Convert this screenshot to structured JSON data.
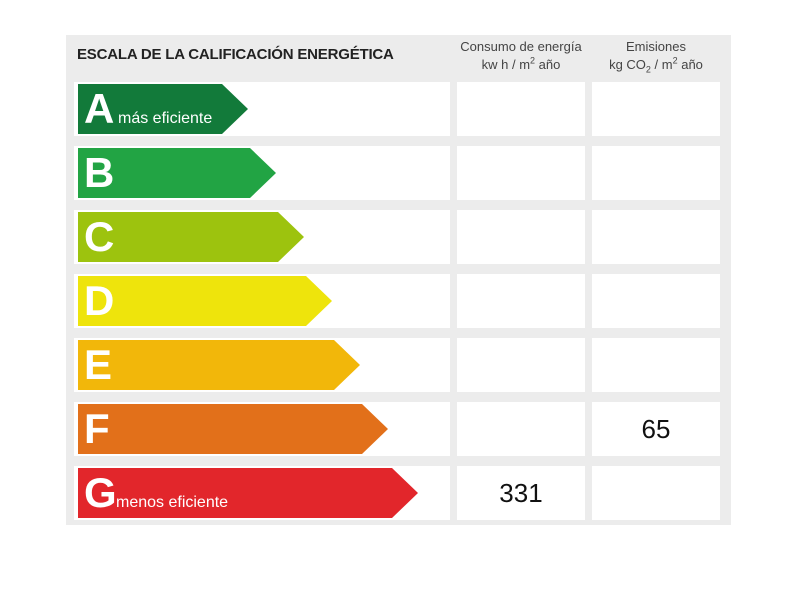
{
  "title": "ESCALA DE LA CALIFICACIÓN ENERGÉTICA",
  "columns": {
    "consumo": {
      "line1": "Consumo de energía",
      "line2_pre": "kw h / m",
      "line2_sup": "2",
      "line2_post": " año"
    },
    "emisiones": {
      "line1": "Emisiones",
      "line2_pre": "kg CO",
      "line2_sub": "2",
      "line2_mid": " / m",
      "line2_sup": "2",
      "line2_post": " año"
    }
  },
  "ratings": [
    {
      "letter": "A",
      "sublabel": "más eficiente",
      "color": "#127a3a",
      "consumo": "",
      "emisiones": ""
    },
    {
      "letter": "B",
      "sublabel": "",
      "color": "#22a444",
      "consumo": "",
      "emisiones": ""
    },
    {
      "letter": "C",
      "sublabel": "",
      "color": "#9dc30e",
      "consumo": "",
      "emisiones": ""
    },
    {
      "letter": "D",
      "sublabel": "",
      "color": "#eee40c",
      "consumo": "",
      "emisiones": ""
    },
    {
      "letter": "E",
      "sublabel": "",
      "color": "#f2b70a",
      "consumo": "",
      "emisiones": ""
    },
    {
      "letter": "F",
      "sublabel": "",
      "color": "#e2701a",
      "consumo": "",
      "emisiones": "65"
    },
    {
      "letter": "G",
      "sublabel": "menos eficiente",
      "color": "#e2262b",
      "consumo": "331",
      "emisiones": ""
    }
  ]
}
